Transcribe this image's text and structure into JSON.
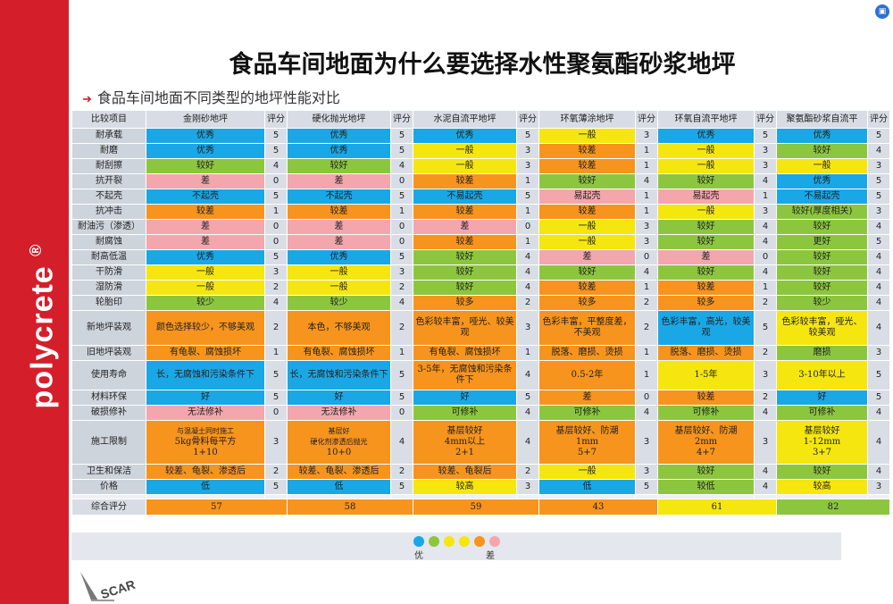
{
  "brand": "polycrete",
  "brand_mark": "®",
  "title": "食品车间地面为什么要选择水性聚氨酯砂浆地坪",
  "subtitle": "食品车间地面不同类型的地坪性能对比",
  "header": [
    "比较项目",
    "金刚砂地坪",
    "评分",
    "硬化抛光地坪",
    "评分",
    "水泥自流平地坪",
    "评分",
    "环氧薄涂地坪",
    "评分",
    "环氧自流平地坪",
    "评分",
    "聚氨酯砂浆自流平",
    "评分"
  ],
  "rows": [
    {
      "label": "耐承载",
      "cells": [
        [
          "优秀",
          "5"
        ],
        [
          "优秀",
          "5"
        ],
        [
          "优秀",
          "5"
        ],
        [
          "一般",
          "3"
        ],
        [
          "优秀",
          "5"
        ],
        [
          "优秀",
          "5"
        ]
      ]
    },
    {
      "label": "耐磨",
      "cells": [
        [
          "优秀",
          "5"
        ],
        [
          "优秀",
          "5"
        ],
        [
          "一般",
          "3"
        ],
        [
          "较差",
          "1"
        ],
        [
          "一般",
          "3"
        ],
        [
          "较好",
          "4"
        ]
      ]
    },
    {
      "label": "耐刮擦",
      "cells": [
        [
          "较好",
          "4"
        ],
        [
          "较好",
          "4"
        ],
        [
          "一般",
          "3"
        ],
        [
          "较差",
          "1"
        ],
        [
          "一般",
          "3"
        ],
        [
          "一般",
          "3"
        ]
      ]
    },
    {
      "label": "抗开裂",
      "cells": [
        [
          "差",
          "0"
        ],
        [
          "差",
          "0"
        ],
        [
          "较差",
          "1"
        ],
        [
          "较好",
          "4"
        ],
        [
          "较好",
          "4"
        ],
        [
          "优秀",
          "5"
        ]
      ]
    },
    {
      "label": "不起壳",
      "cells": [
        [
          "不起壳",
          "5"
        ],
        [
          "不起壳",
          "5"
        ],
        [
          "不易起壳",
          "5"
        ],
        [
          "易起壳",
          "1"
        ],
        [
          "易起壳",
          "1"
        ],
        [
          "不易起壳",
          "5"
        ]
      ]
    },
    {
      "label": "抗冲击",
      "cells": [
        [
          "较差",
          "1"
        ],
        [
          "较差",
          "1"
        ],
        [
          "较差",
          "1"
        ],
        [
          "较差",
          "1"
        ],
        [
          "一般",
          "3"
        ],
        [
          "较好(厚度相关)",
          "3"
        ]
      ]
    },
    {
      "label": "耐油污（渗透）",
      "cells": [
        [
          "差",
          "0"
        ],
        [
          "差",
          "0"
        ],
        [
          "差",
          "0"
        ],
        [
          "一般",
          "3"
        ],
        [
          "较好",
          "4"
        ],
        [
          "较好",
          "4"
        ]
      ]
    },
    {
      "label": "耐腐蚀",
      "cells": [
        [
          "差",
          "0"
        ],
        [
          "差",
          "0"
        ],
        [
          "较差",
          "1"
        ],
        [
          "一般",
          "3"
        ],
        [
          "较好",
          "4"
        ],
        [
          "更好",
          "5"
        ]
      ]
    },
    {
      "label": "耐高低温",
      "cells": [
        [
          "优秀",
          "5"
        ],
        [
          "优秀",
          "5"
        ],
        [
          "较好",
          "4"
        ],
        [
          "差",
          "0"
        ],
        [
          "差",
          "0"
        ],
        [
          "较好",
          "4"
        ]
      ]
    },
    {
      "label": "干防滑",
      "cells": [
        [
          "一般",
          "3"
        ],
        [
          "一般",
          "3"
        ],
        [
          "较好",
          "4"
        ],
        [
          "较好",
          "4"
        ],
        [
          "较好",
          "4"
        ],
        [
          "较好",
          "4"
        ]
      ]
    },
    {
      "label": "湿防滑",
      "cells": [
        [
          "一般",
          "2"
        ],
        [
          "一般",
          "2"
        ],
        [
          "较好",
          "4"
        ],
        [
          "较差",
          "1"
        ],
        [
          "较差",
          "1"
        ],
        [
          "较好",
          "4"
        ]
      ]
    },
    {
      "label": "轮胎印",
      "cells": [
        [
          "较少",
          "4"
        ],
        [
          "较少",
          "4"
        ],
        [
          "较多",
          "2"
        ],
        [
          "较多",
          "2"
        ],
        [
          "较多",
          "2"
        ],
        [
          "较少",
          "4"
        ]
      ]
    },
    {
      "label": "新地坪装观",
      "cells": [
        [
          "颜色选择较少，不够美观",
          "2"
        ],
        [
          "本色，不够美观",
          "2"
        ],
        [
          "色彩较丰富，哑光、较美观",
          "3"
        ],
        [
          "色彩丰富，平整度差，不美观",
          "2"
        ],
        [
          "色彩丰富，高光，较美观",
          "5"
        ],
        [
          "色彩较丰富，哑光、较美观",
          "4"
        ]
      ]
    },
    {
      "label": "旧地坪装观",
      "cells": [
        [
          "有龟裂、腐蚀损坏",
          "1"
        ],
        [
          "有龟裂、腐蚀损坏",
          "1"
        ],
        [
          "有龟裂、腐蚀损坏",
          "1"
        ],
        [
          "脱落、磨损、烫损",
          "1"
        ],
        [
          "脱落、磨损、烫损",
          "2"
        ],
        [
          "磨损",
          "3"
        ]
      ]
    },
    {
      "label": "使用寿命",
      "cells": [
        [
          "长，无腐蚀和污染条件下",
          "5"
        ],
        [
          "长，无腐蚀和污染条件下",
          "5"
        ],
        [
          "3-5年，无腐蚀和污染条件下",
          "4"
        ],
        [
          "0.5-2年",
          "1"
        ],
        [
          "1-5年",
          "3"
        ],
        [
          "3-10年以上",
          "5"
        ]
      ]
    },
    {
      "label": "材料环保",
      "cells": [
        [
          "好",
          "5"
        ],
        [
          "好",
          "5"
        ],
        [
          "好",
          "5"
        ],
        [
          "差",
          "0"
        ],
        [
          "较差",
          "2"
        ],
        [
          "好",
          "5"
        ]
      ]
    },
    {
      "label": "破损修补",
      "cells": [
        [
          "无法修补",
          "0"
        ],
        [
          "无法修补",
          "0"
        ],
        [
          "可修补",
          "4"
        ],
        [
          "可修补",
          "4"
        ],
        [
          "可修补",
          "4"
        ],
        [
          "可修补",
          "4"
        ]
      ]
    },
    {
      "label": "施工限制",
      "cells": [
        [
          "与混凝土同时施工|5kg骨料每平方|1+10",
          "3"
        ],
        [
          "基层好|硬化剂渗透后抛光|10+0",
          "4"
        ],
        [
          "基层较好|4mm以上|2+1",
          "4"
        ],
        [
          "基层较好、防潮|1mm|5+7",
          "3"
        ],
        [
          "基层较好、防潮|2mm|4+7",
          "3"
        ],
        [
          "基层较好|1-12mm|3+7",
          "4"
        ]
      ]
    },
    {
      "label": "卫生和保洁",
      "cells": [
        [
          "较差、龟裂、渗透后",
          "2"
        ],
        [
          "较差、龟裂、渗透后",
          "2"
        ],
        [
          "较差、龟裂后",
          "2"
        ],
        [
          "一般",
          "3"
        ],
        [
          "较好",
          "4"
        ],
        [
          "较好",
          "4"
        ]
      ]
    },
    {
      "label": "价格",
      "cells": [
        [
          "低",
          "5"
        ],
        [
          "低",
          "5"
        ],
        [
          "较高",
          "3"
        ],
        [
          "低",
          "5"
        ],
        [
          "较低",
          "4"
        ],
        [
          "较高",
          "3"
        ]
      ]
    }
  ],
  "total": {
    "label": "综合评分",
    "values": [
      "57",
      "58",
      "59",
      "43",
      "61",
      "82"
    ]
  },
  "legend": {
    "left": "优",
    "right": "差",
    "colors": [
      "#1aa7e6",
      "#8cc63e",
      "#f5e610",
      "#f5e610",
      "#f7941d",
      "#f4a6ad"
    ]
  },
  "logo_text": "SCAR",
  "colors": {
    "excellent": "#1aa7e6",
    "good": "#8cc63e",
    "fair": "#f5e610",
    "poor": "#f7941d",
    "bad": "#f4a6ad",
    "brand_red": "#d41f2b"
  }
}
